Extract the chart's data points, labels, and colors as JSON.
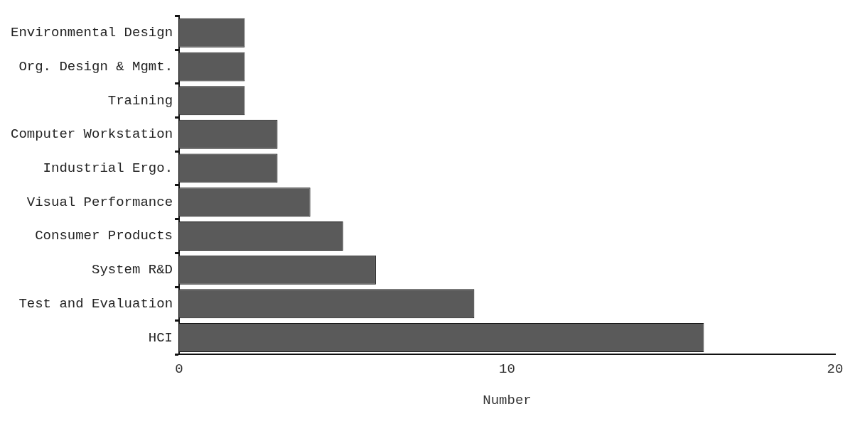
{
  "chart_data": {
    "type": "bar",
    "orientation": "horizontal",
    "xlabel": "Number",
    "categories": [
      "Environmental Design",
      "Org. Design & Mgmt.",
      "Training",
      "Computer Workstation",
      "Industrial Ergo.",
      "Visual Performance",
      "Consumer Products",
      "System R&D",
      "Test and Evaluation",
      "HCI"
    ],
    "values": [
      2,
      2,
      2,
      3,
      3,
      4,
      5,
      6,
      9,
      16
    ],
    "color": "#5a5a5a",
    "xlim": [
      0,
      20
    ],
    "xticks": [
      0,
      10,
      20
    ],
    "grid": false,
    "legend": false
  }
}
